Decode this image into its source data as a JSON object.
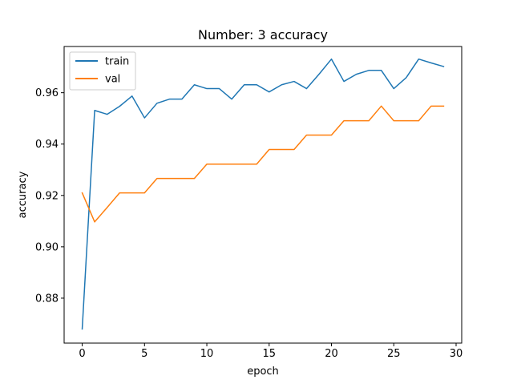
{
  "chart_data": {
    "type": "line",
    "title": "Number: 3 accuracy",
    "xlabel": "epoch",
    "ylabel": "accuracy",
    "xlim": [
      -1.45,
      30.45
    ],
    "ylim": [
      0.8625,
      0.978
    ],
    "x_ticks": [
      0,
      5,
      10,
      15,
      20,
      25,
      30
    ],
    "x_tick_labels": [
      "0",
      "5",
      "10",
      "15",
      "20",
      "25",
      "30"
    ],
    "y_ticks": [
      0.88,
      0.9,
      0.92,
      0.94,
      0.96
    ],
    "y_tick_labels": [
      "0.88",
      "0.90",
      "0.92",
      "0.94",
      "0.96"
    ],
    "grid": false,
    "legend_position": "top-left",
    "x": [
      0,
      1,
      2,
      3,
      4,
      5,
      6,
      7,
      8,
      9,
      10,
      11,
      12,
      13,
      14,
      15,
      16,
      17,
      18,
      19,
      20,
      21,
      22,
      23,
      24,
      25,
      26,
      27,
      28,
      29
    ],
    "series": [
      {
        "name": "train",
        "color": "#1f77b4",
        "values": [
          0.868,
          0.9531,
          0.9516,
          0.9547,
          0.9587,
          0.9502,
          0.9559,
          0.9575,
          0.9575,
          0.9631,
          0.9616,
          0.9616,
          0.9575,
          0.9631,
          0.9631,
          0.9603,
          0.9631,
          0.9644,
          0.9616,
          0.9672,
          0.9731,
          0.9644,
          0.9672,
          0.9687,
          0.9687,
          0.9616,
          0.9659,
          0.9731,
          0.9716,
          0.9702
        ]
      },
      {
        "name": "val",
        "color": "#ff7f0e",
        "values": [
          0.921,
          0.9097,
          0.9153,
          0.921,
          0.921,
          0.921,
          0.9266,
          0.9266,
          0.9266,
          0.9266,
          0.9322,
          0.9322,
          0.9322,
          0.9322,
          0.9322,
          0.9379,
          0.9379,
          0.9379,
          0.9435,
          0.9435,
          0.9435,
          0.9491,
          0.9491,
          0.9491,
          0.9548,
          0.9491,
          0.9491,
          0.9491,
          0.9548,
          0.9548
        ]
      }
    ]
  }
}
